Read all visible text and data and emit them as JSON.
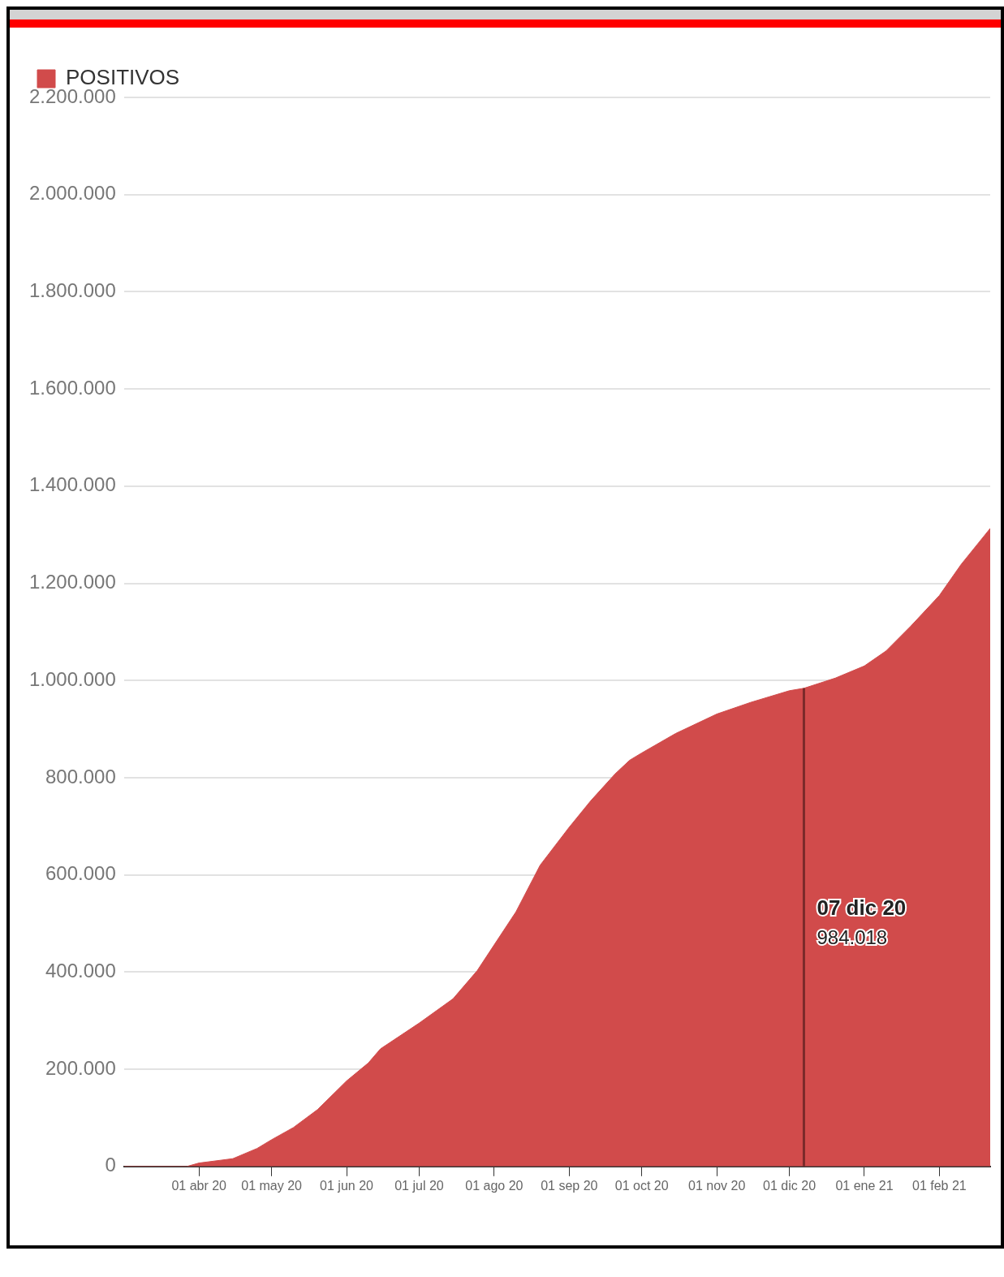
{
  "chart_data": {
    "type": "area",
    "legend": "top left",
    "grid": "y",
    "x": [
      "2020-03-01",
      "2020-03-27",
      "2020-04-01",
      "2020-04-15",
      "2020-04-25",
      "2020-05-01",
      "2020-05-10",
      "2020-05-20",
      "2020-06-01",
      "2020-06-10",
      "2020-06-15",
      "2020-07-01",
      "2020-07-15",
      "2020-07-25",
      "2020-08-01",
      "2020-08-10",
      "2020-08-20",
      "2020-09-01",
      "2020-09-10",
      "2020-09-20",
      "2020-09-26",
      "2020-10-01",
      "2020-10-15",
      "2020-11-01",
      "2020-11-15",
      "2020-12-01",
      "2020-12-07",
      "2020-12-20",
      "2021-01-01",
      "2021-01-10",
      "2021-01-20",
      "2021-02-01",
      "2021-02-10",
      "2021-02-22"
    ],
    "series": [
      {
        "name": "POSITIVOS",
        "color": "#d14b4b",
        "values": [
          0,
          0,
          7000,
          16000,
          37000,
          55000,
          80000,
          117000,
          176000,
          213000,
          242000,
          295000,
          345000,
          403000,
          456000,
          524000,
          620000,
          698000,
          753000,
          808000,
          836000,
          851000,
          891000,
          931000,
          955000,
          979000,
          984018,
          1005000,
          1030000,
          1061000,
          1111000,
          1175000,
          1239000,
          1313000
        ]
      }
    ],
    "xlim": [
      "2020-03-01",
      "2021-02-22"
    ],
    "xticks": [
      {
        "value": "2020-04-01",
        "label": "01 abr 20"
      },
      {
        "value": "2020-05-01",
        "label": "01 may 20"
      },
      {
        "value": "2020-06-01",
        "label": "01 jun 20"
      },
      {
        "value": "2020-07-01",
        "label": "01 jul 20"
      },
      {
        "value": "2020-08-01",
        "label": "01 ago 20"
      },
      {
        "value": "2020-09-01",
        "label": "01 sep 20"
      },
      {
        "value": "2020-10-01",
        "label": "01 oct 20"
      },
      {
        "value": "2020-11-01",
        "label": "01 nov 20"
      },
      {
        "value": "2020-12-01",
        "label": "01 dic 20"
      },
      {
        "value": "2021-01-01",
        "label": "01 ene 21"
      },
      {
        "value": "2021-02-01",
        "label": "01 feb 21"
      }
    ],
    "ylim": [
      0,
      2200000
    ],
    "yticks": [
      0,
      {
        "value": 200000,
        "label": "200.000"
      },
      {
        "value": 400000,
        "label": "400.000"
      },
      {
        "value": 600000,
        "label": "600.000"
      },
      {
        "value": 800000,
        "label": "800.000"
      },
      {
        "value": 1000000,
        "label": "1.000.000"
      },
      {
        "value": 1200000,
        "label": "1.200.000"
      },
      {
        "value": 1400000,
        "label": "1.400.000"
      },
      {
        "value": 1600000,
        "label": "1.600.000"
      },
      {
        "value": 1800000,
        "label": "1.800.000"
      },
      {
        "value": 2000000,
        "label": "2.000.000"
      },
      {
        "value": 2200000,
        "label": "2.200.000"
      }
    ],
    "ref_lines": [
      {
        "axis": "x",
        "value": "2020-12-07",
        "label": "07 dic 20",
        "color": "#7a2a2a"
      }
    ],
    "annotations": [
      "984.018"
    ]
  }
}
